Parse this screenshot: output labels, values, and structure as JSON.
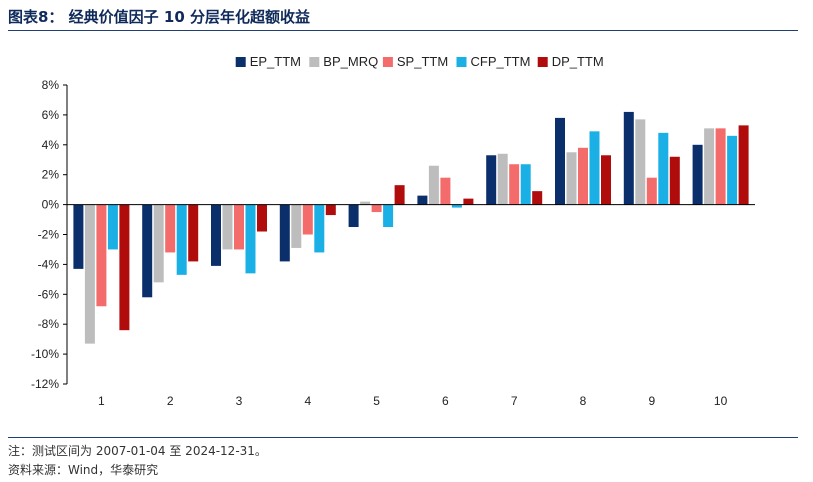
{
  "header": {
    "title": "图表8： 经典价值因子 10 分层年化超额收益"
  },
  "footer": {
    "note": "注：测试区间为 2007-01-04 至 2024-12-31。",
    "source": "资料来源：Wind，华泰研究"
  },
  "chart_data": {
    "type": "bar",
    "title": "经典价值因子 10 分层年化超额收益",
    "xlabel": "",
    "ylabel": "",
    "categories": [
      "1",
      "2",
      "3",
      "4",
      "5",
      "6",
      "7",
      "8",
      "9",
      "10"
    ],
    "ylim": [
      -12,
      8
    ],
    "yticks": [
      8,
      6,
      4,
      2,
      0,
      -2,
      -4,
      -6,
      -8,
      -10,
      -12
    ],
    "ytick_labels": [
      "8%",
      "6%",
      "4%",
      "2%",
      "0%",
      "-2%",
      "-4%",
      "-6%",
      "-8%",
      "-10%",
      "-12%"
    ],
    "legend_position": "top-center",
    "grid": false,
    "series": [
      {
        "name": "EP_TTM",
        "color": "#0b2f6b",
        "values": [
          -4.3,
          -6.2,
          -4.1,
          -3.8,
          -1.5,
          0.6,
          3.3,
          5.8,
          6.2,
          4.0
        ]
      },
      {
        "name": "BP_MRQ",
        "color": "#bdbdbd",
        "values": [
          -9.3,
          -5.2,
          -3.0,
          -2.9,
          0.2,
          2.6,
          3.4,
          3.5,
          5.7,
          5.1
        ]
      },
      {
        "name": "SP_TTM",
        "color": "#f46b6b",
        "values": [
          -6.8,
          -3.2,
          -3.0,
          -2.0,
          -0.5,
          1.8,
          2.7,
          3.8,
          1.8,
          5.1
        ]
      },
      {
        "name": "CFP_TTM",
        "color": "#1ab0e6",
        "values": [
          -3.0,
          -4.7,
          -4.6,
          -3.2,
          -1.5,
          -0.2,
          2.7,
          4.9,
          4.8,
          4.6
        ]
      },
      {
        "name": "DP_TTM",
        "color": "#b00c0c",
        "values": [
          -8.4,
          -3.8,
          -1.8,
          -0.7,
          1.3,
          0.4,
          0.9,
          3.3,
          3.2,
          5.3
        ]
      }
    ]
  }
}
